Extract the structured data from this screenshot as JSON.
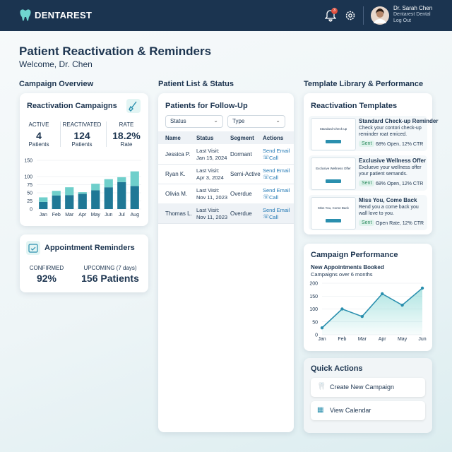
{
  "header": {
    "brand": "DENTAREST",
    "notification_count": "3",
    "user_name": "Dr. Sarah Chen",
    "user_org": "Dentarest Dental",
    "logout": "Log Out"
  },
  "page": {
    "title": "Patient Reactivation & Reminders",
    "welcome": "Welcome, Dr. Chen"
  },
  "sections": {
    "overview": "Campaign Overview",
    "patients": "Patient List & Status",
    "templates": "Template Library & Performance"
  },
  "reactivation": {
    "title": "Reactivation Campaigns",
    "stats": [
      {
        "label": "ACTIVE",
        "value": "4",
        "unit": "Patients"
      },
      {
        "label": "REACTIVATED",
        "value": "124",
        "unit": "Patients"
      },
      {
        "label": "RATE",
        "value": "18.2%",
        "unit": "Rate"
      }
    ]
  },
  "reminders": {
    "title": "Appointment Reminders",
    "stats": [
      {
        "label": "CONFIRMED",
        "value": "92%"
      },
      {
        "label": "UPCOMING (7 days)",
        "value": "156 Patients"
      }
    ]
  },
  "patients": {
    "title": "Patients for Follow-Up",
    "filters": [
      "Status",
      "Type"
    ],
    "columns": [
      "Name",
      "Status",
      "Segment",
      "Actions"
    ],
    "rows": [
      {
        "name": "Jessica P.",
        "visit_label": "Last Visit:",
        "visit_date": "Jan 15, 2024",
        "segment": "Dormant",
        "email": "Send Email",
        "call": "Call"
      },
      {
        "name": "Ryan K.",
        "visit_label": "Last Visit:",
        "visit_date": "Apr 3, 2024",
        "segment": "Semi-Active",
        "email": "Send Email",
        "call": "Call"
      },
      {
        "name": "Olivia M.",
        "visit_label": "Last Visit:",
        "visit_date": "Nov 11, 2023",
        "segment": "Overdue",
        "email": "Send Email",
        "call": "Call"
      },
      {
        "name": "Thomas L.",
        "visit_label": "Last Visit:",
        "visit_date": "Nov 11, 2023",
        "segment": "Overdue",
        "email": "Send Email",
        "call": "Call"
      }
    ]
  },
  "templates": {
    "title": "Reactivation Templates",
    "items": [
      {
        "thumb": "Standard Check up",
        "name": "Standard Check-up Reminder",
        "description": "Check your contori check-up reminder roat emiced.",
        "status": "Sent",
        "stats": "68% Open, 12% CTR"
      },
      {
        "thumb": "Exclusive Wellness Offer",
        "name": "Exclusive Wellness Offer",
        "description": "Exclueve your wellness offer your patient semands.",
        "status": "Sent",
        "stats": "68% Open, 12% CTR"
      },
      {
        "thumb": "Miss You, Come Back",
        "name": "Miss You, Come Back",
        "description": "Rend you a come back you wall love to you.",
        "status": "Sent",
        "stats": "Open Rate, 12% CTR"
      }
    ]
  },
  "quick_actions": {
    "title": "Quick Actions",
    "items": [
      "Create New Campaign",
      "View Calendar"
    ]
  },
  "chart_data": [
    {
      "type": "bar",
      "stacked": true,
      "categories": [
        "Jan",
        "Feb",
        "Mar",
        "Apr",
        "May",
        "Jun",
        "Jul",
        "Aug"
      ],
      "series": [
        {
          "color": "#1f7896",
          "values": [
            22,
            42,
            43,
            47,
            58,
            67,
            83,
            71
          ]
        },
        {
          "color": "#6fcfcb",
          "values": [
            14,
            14,
            24,
            5,
            20,
            25,
            15,
            45
          ]
        }
      ],
      "ylim": [
        0,
        150
      ],
      "yticks": [
        0,
        25,
        50,
        75,
        100,
        150
      ],
      "grid": true
    },
    {
      "type": "line",
      "title": "Campaign Performance",
      "subtitle": "New Appointments Booked",
      "caption": "Campaigns over 6 months",
      "categories": [
        "Jan",
        "Feb",
        "Mar",
        "Apr",
        "May",
        "Jun"
      ],
      "series": [
        {
          "color": "#2a8fae",
          "values": [
            27,
            100,
            71,
            159,
            115,
            181
          ]
        }
      ],
      "ylim": [
        0,
        200
      ],
      "yticks": [
        0,
        50,
        100,
        150,
        200
      ],
      "grid": true,
      "area": true
    }
  ]
}
